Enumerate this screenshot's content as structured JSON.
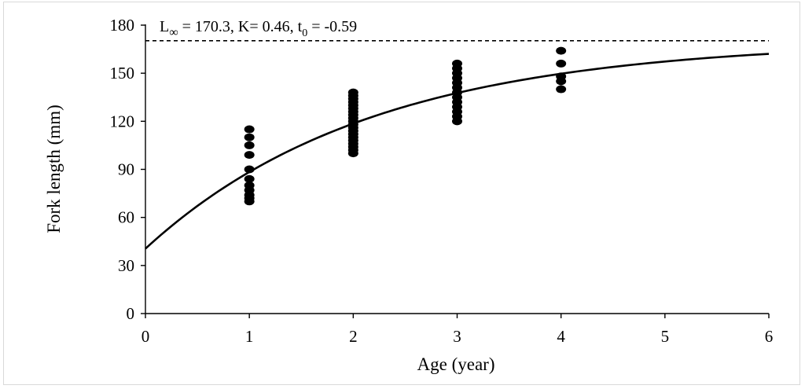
{
  "chart_data": {
    "type": "scatter",
    "xlabel": "Age (year)",
    "ylabel": "Fork length (mm)",
    "xlim": [
      0,
      6
    ],
    "ylim": [
      0,
      180
    ],
    "x_ticks": [
      "0",
      "1",
      "2",
      "3",
      "4",
      "5",
      "6"
    ],
    "y_ticks": [
      "0",
      "30",
      "60",
      "90",
      "120",
      "150",
      "180"
    ],
    "annotation": {
      "l_symbol": "L",
      "inf_symbol": "∞",
      "part1": " = 170.3, K= 0.46, t",
      "t_subscript": "0",
      "part2": " = -0.59"
    },
    "asymptote": {
      "y": 170.3,
      "style": "dashed"
    },
    "vbgf_curve": {
      "L_inf": 170.3,
      "K": 0.46,
      "t0": -0.59,
      "x_range": [
        0,
        6
      ]
    },
    "points": [
      {
        "x": 1,
        "y": 70
      },
      {
        "x": 1,
        "y": 72
      },
      {
        "x": 1,
        "y": 74
      },
      {
        "x": 1,
        "y": 77
      },
      {
        "x": 1,
        "y": 80
      },
      {
        "x": 1,
        "y": 84
      },
      {
        "x": 1,
        "y": 90
      },
      {
        "x": 1,
        "y": 99
      },
      {
        "x": 1,
        "y": 105
      },
      {
        "x": 1,
        "y": 110
      },
      {
        "x": 1,
        "y": 115
      },
      {
        "x": 2,
        "y": 100
      },
      {
        "x": 2,
        "y": 102
      },
      {
        "x": 2,
        "y": 104
      },
      {
        "x": 2,
        "y": 106
      },
      {
        "x": 2,
        "y": 108
      },
      {
        "x": 2,
        "y": 110
      },
      {
        "x": 2,
        "y": 112
      },
      {
        "x": 2,
        "y": 114
      },
      {
        "x": 2,
        "y": 116
      },
      {
        "x": 2,
        "y": 118
      },
      {
        "x": 2,
        "y": 120
      },
      {
        "x": 2,
        "y": 122
      },
      {
        "x": 2,
        "y": 124
      },
      {
        "x": 2,
        "y": 126
      },
      {
        "x": 2,
        "y": 128
      },
      {
        "x": 2,
        "y": 130
      },
      {
        "x": 2,
        "y": 132
      },
      {
        "x": 2,
        "y": 134
      },
      {
        "x": 2,
        "y": 136
      },
      {
        "x": 2,
        "y": 138
      },
      {
        "x": 3,
        "y": 120
      },
      {
        "x": 3,
        "y": 123
      },
      {
        "x": 3,
        "y": 126
      },
      {
        "x": 3,
        "y": 129
      },
      {
        "x": 3,
        "y": 132
      },
      {
        "x": 3,
        "y": 135
      },
      {
        "x": 3,
        "y": 138
      },
      {
        "x": 3,
        "y": 141
      },
      {
        "x": 3,
        "y": 144
      },
      {
        "x": 3,
        "y": 147
      },
      {
        "x": 3,
        "y": 150
      },
      {
        "x": 3,
        "y": 153
      },
      {
        "x": 3,
        "y": 156
      },
      {
        "x": 4,
        "y": 140
      },
      {
        "x": 4,
        "y": 145
      },
      {
        "x": 4,
        "y": 148
      },
      {
        "x": 4,
        "y": 156
      },
      {
        "x": 4,
        "y": 164
      }
    ]
  }
}
